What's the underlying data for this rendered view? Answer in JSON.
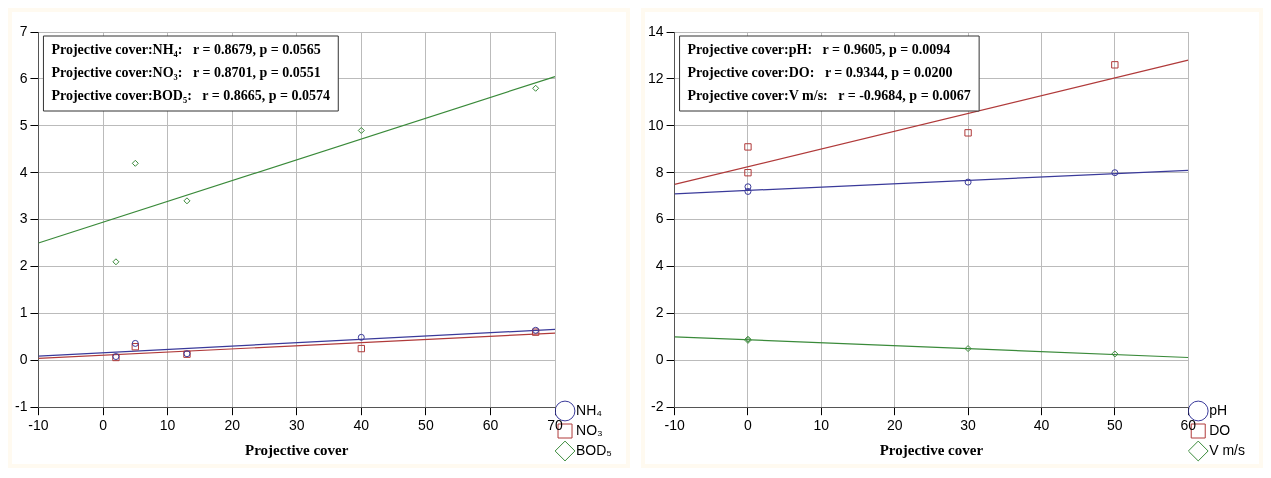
{
  "chart_data": [
    {
      "type": "scatter",
      "xlabel": "Projective cover",
      "xlim": [
        -10,
        70
      ],
      "xticks": [
        -10,
        0,
        10,
        20,
        30,
        40,
        50,
        60,
        70
      ],
      "ylim": [
        -1,
        7
      ],
      "yticks": [
        -1,
        0,
        1,
        2,
        3,
        4,
        5,
        6,
        7
      ],
      "grid": true,
      "legend": "bottom right",
      "annotations": [
        "Projective cover:NH₄:   r = 0.8679, p = 0.0565",
        "Projective cover:NO₃:   r = 0.8701, p = 0.0551",
        "Projective cover:BOD₅:   r = 0.8665, p = 0.0574"
      ],
      "series": [
        {
          "name": "NH₄",
          "color": "#3a3a9a",
          "marker": "circle",
          "x": [
            2,
            5,
            13,
            40,
            67
          ],
          "values": [
            0.08,
            0.36,
            0.14,
            0.49,
            0.64
          ]
        },
        {
          "name": "NO₃",
          "color": "#b03a3a",
          "marker": "square",
          "x": [
            2,
            5,
            13,
            40,
            67
          ],
          "values": [
            0.06,
            0.29,
            0.13,
            0.25,
            0.6
          ]
        },
        {
          "name": "BOD₅",
          "color": "#3a8a3a",
          "marker": "diamond",
          "x": [
            2,
            5,
            13,
            40,
            67
          ],
          "values": [
            2.1,
            4.2,
            3.4,
            4.9,
            5.8
          ]
        },
        {
          "type": "line",
          "color": "#3a3a9a",
          "marker": "none",
          "x": [
            -10,
            70
          ],
          "values": [
            0.09,
            0.66
          ]
        },
        {
          "type": "line",
          "color": "#b03a3a",
          "marker": "none",
          "x": [
            -10,
            70
          ],
          "values": [
            0.04,
            0.58
          ]
        },
        {
          "type": "line",
          "color": "#3a8a3a",
          "marker": "none",
          "x": [
            -10,
            70
          ],
          "values": [
            2.5,
            6.05
          ]
        }
      ]
    },
    {
      "type": "scatter",
      "xlabel": "Projective cover",
      "xlim": [
        -10,
        60
      ],
      "xticks": [
        -10,
        0,
        10,
        20,
        30,
        40,
        50,
        60
      ],
      "ylim": [
        -2,
        14
      ],
      "yticks": [
        -2,
        0,
        2,
        4,
        6,
        8,
        10,
        12,
        14
      ],
      "grid": true,
      "legend": "bottom right",
      "annotations": [
        "Projective cover:pH:   r = 0.9605, p = 0.0094",
        "Projective cover:DO:   r = 0.9344, p = 0.0200",
        "Projective cover:V m/s:   r = -0.9684, p = 0.0067"
      ],
      "series": [
        {
          "name": "pH",
          "color": "#3a3a9a",
          "marker": "circle",
          "x": [
            0,
            0,
            30,
            50
          ],
          "values": [
            7.4,
            7.2,
            7.6,
            8.0
          ]
        },
        {
          "name": "DO",
          "color": "#b03a3a",
          "marker": "square",
          "x": [
            0,
            0,
            30,
            50
          ],
          "values": [
            9.1,
            8.0,
            9.7,
            12.6
          ]
        },
        {
          "name": "V m/s",
          "color": "#3a8a3a",
          "marker": "diamond",
          "x": [
            0,
            0,
            30,
            50
          ],
          "values": [
            0.9,
            0.85,
            0.5,
            0.27
          ]
        },
        {
          "type": "line",
          "color": "#3a3a9a",
          "marker": "none",
          "x": [
            -10,
            60
          ],
          "values": [
            7.1,
            8.1
          ]
        },
        {
          "type": "line",
          "color": "#b03a3a",
          "marker": "none",
          "x": [
            -10,
            60
          ],
          "values": [
            7.5,
            12.8
          ]
        },
        {
          "type": "line",
          "color": "#3a8a3a",
          "marker": "none",
          "x": [
            -10,
            60
          ],
          "values": [
            1.0,
            0.12
          ]
        }
      ]
    }
  ]
}
